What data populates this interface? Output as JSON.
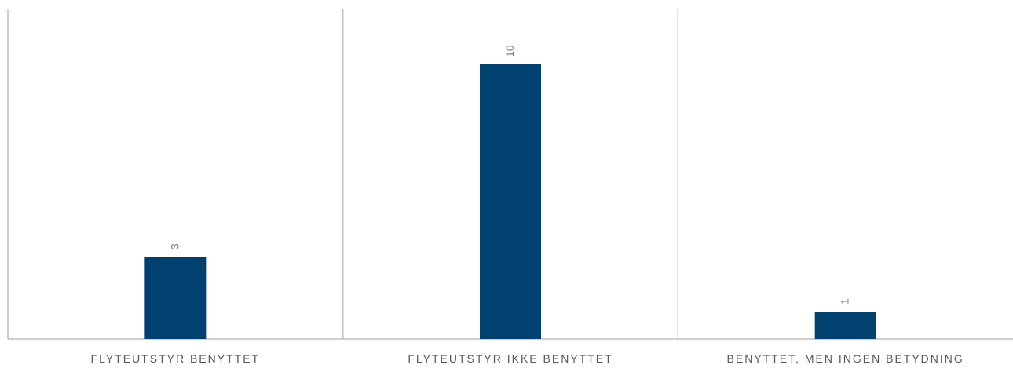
{
  "chart_data": {
    "type": "bar",
    "categories": [
      "FLYTEUTSTYR BENYTTET",
      "FLYTEUTSTYR IKKE BENYTTET",
      "BENYTTET, MEN INGEN BETYDNING"
    ],
    "values": [
      3,
      10,
      1
    ],
    "ylim": [
      0,
      12
    ],
    "grid": false,
    "legend": "none",
    "bar_color": "#00416F",
    "axis_color": "#BFBFBF",
    "label_color": "#595959",
    "data_label_color": "#7F7F7F",
    "data_label_orientation": "vertical"
  }
}
